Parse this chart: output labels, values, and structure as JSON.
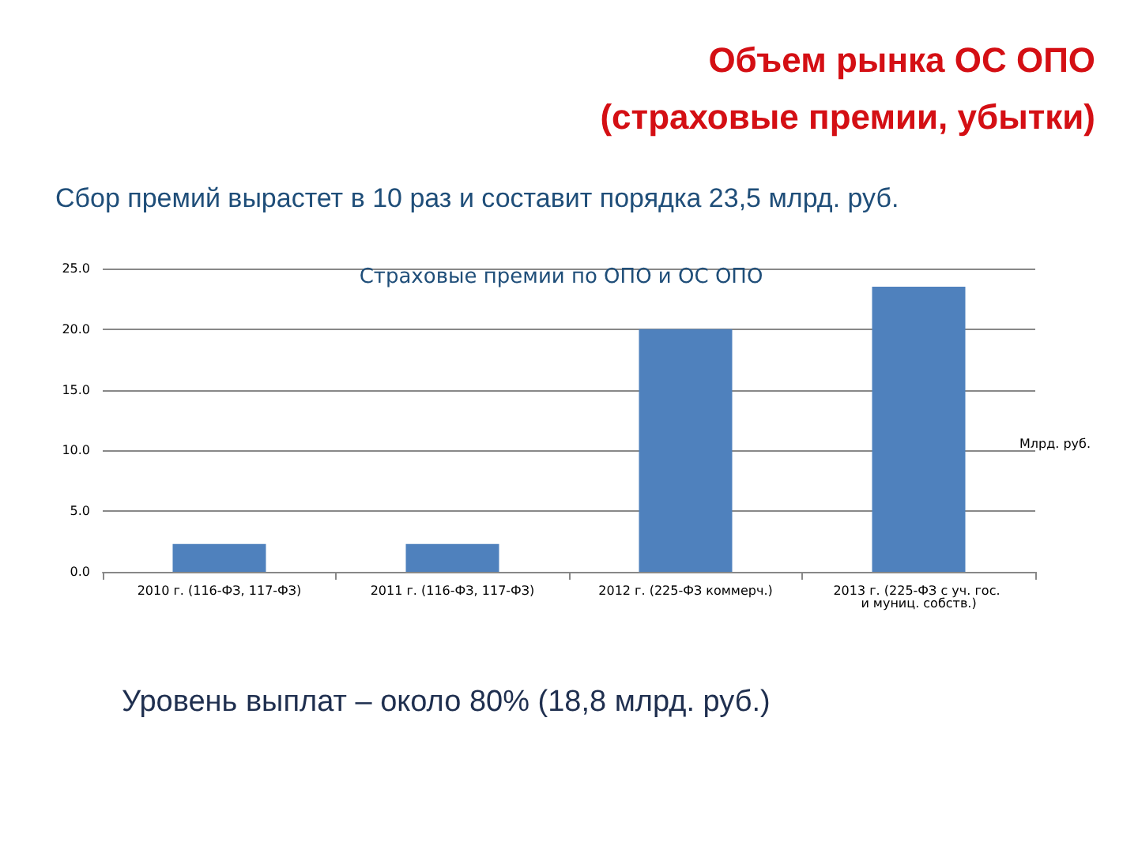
{
  "chart_data": {
    "type": "bar",
    "title": "Объем рынка ОС ОПО\n(страховые премии, убытки)",
    "subtitle": "Сбор премий вырастет в 10 раз и составит порядка 23,5 млрд. руб.",
    "ylabel": "Млрд. руб.",
    "annotations": [
      "Страховые премии по ОПО и ОС ОПО",
      "Уровень выплат – около 80% (18,8 млрд. руб.)"
    ],
    "categories": [
      "2010 г. (116-ФЗ, 117-ФЗ)",
      "2011 г. (116-ФЗ, 117-ФЗ)",
      "2012 г. (225-ФЗ коммерч.)",
      "2013 г. (225-ФЗ с уч. гос. и муниц. собств.)"
    ],
    "values": [
      2.3,
      2.3,
      20.0,
      23.5
    ],
    "color": "#4f81bd",
    "ylim": [
      0,
      25
    ],
    "yticks": [
      {
        "value": 0,
        "label": "0.0"
      },
      {
        "value": 5,
        "label": "5.0"
      },
      {
        "value": 10,
        "label": "10.0"
      },
      {
        "value": 15,
        "label": "15.0"
      },
      {
        "value": 20,
        "label": "20.0"
      },
      {
        "value": 25,
        "label": "25.0"
      }
    ],
    "grid": "y"
  }
}
